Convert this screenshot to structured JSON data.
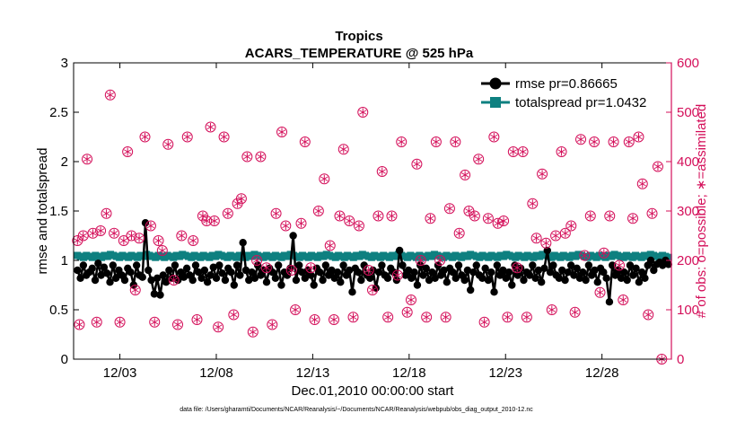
{
  "chart_data": {
    "type": "line",
    "title": "Tropics",
    "subtitle": "ACARS_TEMPERATURE @ 525 hPa",
    "xlabel": "Dec.01,2010 00:00:00 start",
    "ylabel": "rmse and totalspread",
    "y2label": "# of obs: o=possible; ∗=assimilated",
    "footnote": "data file: /Users/gharamti/Documents/NCAR/Reanalysis/~/Documents/NCAR/Reanalysis/webpub/obs_diag_output_2010-12.nc",
    "xlim": [
      0.6,
      31.6
    ],
    "ylim": [
      0,
      3
    ],
    "y2lim": [
      0,
      600
    ],
    "xticks": [
      3,
      8,
      13,
      18,
      23,
      28
    ],
    "xtick_labels": [
      "12/03",
      "12/08",
      "12/13",
      "12/18",
      "12/23",
      "12/28"
    ],
    "yticks": [
      "0",
      "0.5",
      "1",
      "1.5",
      "2",
      "2.5",
      "3"
    ],
    "y2ticks": [
      "0",
      "100",
      "200",
      "300",
      "400",
      "500",
      "600"
    ],
    "legend_position": "top-right",
    "colors": {
      "rmse": "#000000",
      "spread": "#0e8080",
      "obs": "#d40f5a",
      "axis2": "#d40f5a"
    },
    "series": [
      {
        "name": "rmse pr=0.86665",
        "marker": "circle",
        "values": [
          0.9,
          0.82,
          0.95,
          0.85,
          0.88,
          0.92,
          0.8,
          0.97,
          0.85,
          0.93,
          0.87,
          0.78,
          0.95,
          0.82,
          0.9,
          0.85,
          0.8,
          0.92,
          0.88,
          0.75,
          0.95,
          0.85,
          0.83,
          1.38,
          0.9,
          0.8,
          0.66,
          0.82,
          0.65,
          0.85,
          0.78,
          0.9,
          0.82,
          0.95,
          0.8,
          0.88,
          0.83,
          0.92,
          0.85,
          0.8,
          0.95,
          0.88,
          0.82,
          0.9,
          0.78,
          0.85,
          0.93,
          0.82,
          0.95,
          0.87,
          0.8,
          0.92,
          0.88,
          0.75,
          0.95,
          0.85,
          1.18,
          0.9,
          0.8,
          0.88,
          0.82,
          0.95,
          0.85,
          0.9,
          0.78,
          0.92,
          0.88,
          0.82,
          0.95,
          0.75,
          0.88,
          0.85,
          0.92,
          1.25,
          0.8,
          0.95,
          0.88,
          0.82,
          0.9,
          0.85,
          0.75,
          0.92,
          0.88,
          0.8,
          0.95,
          0.85,
          0.9,
          0.82,
          0.88,
          0.78,
          0.95,
          0.85,
          0.9,
          0.68,
          0.92,
          0.88,
          0.8,
          0.95,
          0.85,
          0.82,
          0.9,
          0.72,
          0.88,
          0.95,
          0.85,
          0.82,
          0.92,
          0.88,
          0.8,
          1.1,
          0.95,
          0.85,
          0.9,
          0.82,
          0.88,
          0.75,
          0.95,
          0.85,
          0.92,
          0.8,
          0.88,
          0.82,
          0.95,
          0.85,
          0.9,
          0.78,
          0.92,
          0.88,
          0.82,
          0.95,
          0.85,
          0.8,
          0.9,
          0.7,
          0.88,
          0.95,
          0.85,
          0.82,
          0.92,
          0.8,
          0.88,
          0.68,
          0.95,
          0.85,
          0.9,
          0.82,
          0.88,
          0.75,
          0.95,
          0.85,
          0.92,
          0.8,
          0.88,
          0.85,
          0.95,
          0.82,
          0.9,
          0.78,
          0.92,
          1.1,
          0.88,
          0.95,
          0.85,
          0.82,
          0.9,
          0.8,
          0.88,
          0.95,
          0.85,
          0.92,
          0.82,
          0.88,
          0.8,
          0.95,
          0.85,
          0.9,
          0.78,
          0.92,
          0.88,
          0.82,
          0.58,
          0.95,
          0.85,
          0.9,
          0.82,
          0.88,
          0.8,
          0.95,
          0.85,
          0.92,
          0.78,
          0.88,
          0.82,
          0.95,
          1.0,
          0.9,
          0.96,
          0.98,
          0.95,
          1.0,
          0.96
        ]
      },
      {
        "name": "totalspread pr=1.0432",
        "marker": "square",
        "values": [
          1.05,
          1.04,
          1.03,
          1.05,
          1.04,
          1.03,
          1.05,
          1.04,
          1.03,
          1.05,
          1.04,
          1.06,
          1.05,
          1.04,
          1.03,
          1.05,
          1.04,
          1.03,
          1.05,
          1.04,
          1.03,
          1.05,
          1.04,
          1.06,
          1.05,
          1.04,
          1.03,
          1.05,
          1.04,
          1.03,
          1.05,
          1.04,
          1.03,
          1.05,
          1.04,
          1.06,
          1.05,
          1.04,
          1.03,
          1.05,
          1.04,
          1.03,
          1.05,
          1.04,
          1.03,
          1.05,
          1.04,
          1.06,
          1.05,
          1.04,
          1.03,
          1.05,
          1.04,
          1.03,
          1.05,
          1.04,
          1.03,
          1.05,
          1.04,
          1.06,
          1.05,
          1.04,
          1.03,
          1.05,
          1.04,
          1.03,
          1.05,
          1.04,
          1.03,
          1.05,
          1.04,
          1.06,
          1.05,
          1.04,
          1.03,
          1.05,
          1.04,
          1.03,
          1.05,
          1.04,
          1.03,
          1.05,
          1.04,
          1.06,
          1.05,
          1.04,
          1.03,
          1.05,
          1.04,
          1.03,
          1.05,
          1.04,
          1.03,
          1.05,
          1.04,
          1.06,
          1.05,
          1.04,
          1.03,
          1.05,
          1.04,
          1.03,
          1.05,
          1.04,
          1.03,
          1.05,
          1.04,
          1.06,
          1.05,
          1.04,
          1.03,
          1.05,
          1.04,
          1.03,
          1.05,
          1.04,
          1.03,
          1.05,
          1.04,
          1.06,
          1.05,
          1.04,
          1.03,
          1.05,
          1.04,
          1.03,
          1.05,
          1.04,
          1.03,
          1.05,
          1.04,
          1.06,
          1.05,
          1.04,
          1.03,
          1.05,
          1.04,
          1.03,
          1.05,
          1.04,
          1.03,
          1.05,
          1.04,
          1.06,
          1.05,
          1.04,
          1.03,
          1.05,
          1.04,
          1.03,
          1.05,
          1.04,
          1.03,
          1.05,
          1.04,
          1.06,
          1.05,
          1.04,
          1.03,
          1.05,
          1.04,
          1.03,
          1.05,
          1.04,
          1.03,
          1.05,
          1.04,
          1.06,
          1.05,
          1.04,
          1.03,
          1.05,
          1.04,
          1.03,
          1.05,
          1.04,
          1.03,
          1.05,
          1.04,
          1.06,
          1.05,
          1.04,
          1.03,
          1.05,
          1.04,
          1.03,
          1.05,
          1.04,
          1.03,
          1.05,
          1.04,
          1.06,
          1.05,
          1.04,
          1.03,
          1.05,
          1.04,
          1.03
        ]
      },
      {
        "name": "# of obs",
        "axis": "right",
        "marker": "circle-star",
        "points": [
          [
            0.8,
            240
          ],
          [
            0.9,
            70
          ],
          [
            1.1,
            250
          ],
          [
            1.3,
            405
          ],
          [
            1.6,
            255
          ],
          [
            1.8,
            75
          ],
          [
            2.0,
            260
          ],
          [
            2.3,
            295
          ],
          [
            2.5,
            535
          ],
          [
            2.7,
            255
          ],
          [
            3.0,
            75
          ],
          [
            3.2,
            240
          ],
          [
            3.4,
            420
          ],
          [
            3.6,
            250
          ],
          [
            3.8,
            140
          ],
          [
            4.0,
            245
          ],
          [
            4.3,
            450
          ],
          [
            4.6,
            270
          ],
          [
            4.8,
            75
          ],
          [
            5.0,
            240
          ],
          [
            5.2,
            220
          ],
          [
            5.5,
            435
          ],
          [
            5.8,
            160
          ],
          [
            6.0,
            70
          ],
          [
            6.2,
            250
          ],
          [
            6.5,
            450
          ],
          [
            6.8,
            240
          ],
          [
            7.0,
            80
          ],
          [
            7.3,
            290
          ],
          [
            7.5,
            280
          ],
          [
            7.7,
            470
          ],
          [
            7.9,
            280
          ],
          [
            8.1,
            65
          ],
          [
            8.4,
            450
          ],
          [
            8.6,
            295
          ],
          [
            8.9,
            90
          ],
          [
            9.1,
            315
          ],
          [
            9.3,
            325
          ],
          [
            9.6,
            410
          ],
          [
            9.9,
            55
          ],
          [
            10.1,
            200
          ],
          [
            10.3,
            410
          ],
          [
            10.6,
            185
          ],
          [
            10.9,
            70
          ],
          [
            11.1,
            295
          ],
          [
            11.4,
            460
          ],
          [
            11.6,
            270
          ],
          [
            11.9,
            180
          ],
          [
            12.1,
            100
          ],
          [
            12.4,
            275
          ],
          [
            12.6,
            440
          ],
          [
            12.9,
            185
          ],
          [
            13.1,
            80
          ],
          [
            13.3,
            300
          ],
          [
            13.6,
            365
          ],
          [
            13.9,
            230
          ],
          [
            14.1,
            80
          ],
          [
            14.4,
            290
          ],
          [
            14.6,
            425
          ],
          [
            14.9,
            280
          ],
          [
            15.1,
            85
          ],
          [
            15.4,
            270
          ],
          [
            15.6,
            500
          ],
          [
            15.9,
            180
          ],
          [
            16.1,
            140
          ],
          [
            16.4,
            290
          ],
          [
            16.6,
            380
          ],
          [
            16.9,
            85
          ],
          [
            17.1,
            290
          ],
          [
            17.4,
            170
          ],
          [
            17.6,
            440
          ],
          [
            17.9,
            95
          ],
          [
            18.1,
            120
          ],
          [
            18.4,
            395
          ],
          [
            18.6,
            200
          ],
          [
            18.9,
            85
          ],
          [
            19.1,
            285
          ],
          [
            19.4,
            440
          ],
          [
            19.6,
            200
          ],
          [
            19.9,
            85
          ],
          [
            20.1,
            305
          ],
          [
            20.4,
            440
          ],
          [
            20.6,
            255
          ],
          [
            20.9,
            373
          ],
          [
            21.1,
            300
          ],
          [
            21.4,
            290
          ],
          [
            21.6,
            405
          ],
          [
            21.9,
            75
          ],
          [
            22.1,
            285
          ],
          [
            22.4,
            450
          ],
          [
            22.6,
            275
          ],
          [
            22.9,
            280
          ],
          [
            23.1,
            85
          ],
          [
            23.4,
            420
          ],
          [
            23.6,
            185
          ],
          [
            23.9,
            420
          ],
          [
            24.1,
            85
          ],
          [
            24.4,
            315
          ],
          [
            24.6,
            245
          ],
          [
            24.9,
            375
          ],
          [
            25.1,
            235
          ],
          [
            25.4,
            100
          ],
          [
            25.6,
            250
          ],
          [
            25.9,
            420
          ],
          [
            26.1,
            255
          ],
          [
            26.4,
            270
          ],
          [
            26.6,
            95
          ],
          [
            26.9,
            445
          ],
          [
            27.1,
            210
          ],
          [
            27.4,
            290
          ],
          [
            27.6,
            440
          ],
          [
            27.9,
            135
          ],
          [
            28.1,
            215
          ],
          [
            28.4,
            290
          ],
          [
            28.6,
            440
          ],
          [
            28.9,
            190
          ],
          [
            29.1,
            120
          ],
          [
            29.4,
            440
          ],
          [
            29.6,
            285
          ],
          [
            29.9,
            450
          ],
          [
            30.1,
            355
          ],
          [
            30.4,
            90
          ],
          [
            30.6,
            295
          ],
          [
            30.9,
            390
          ],
          [
            31.1,
            0
          ]
        ]
      }
    ]
  }
}
